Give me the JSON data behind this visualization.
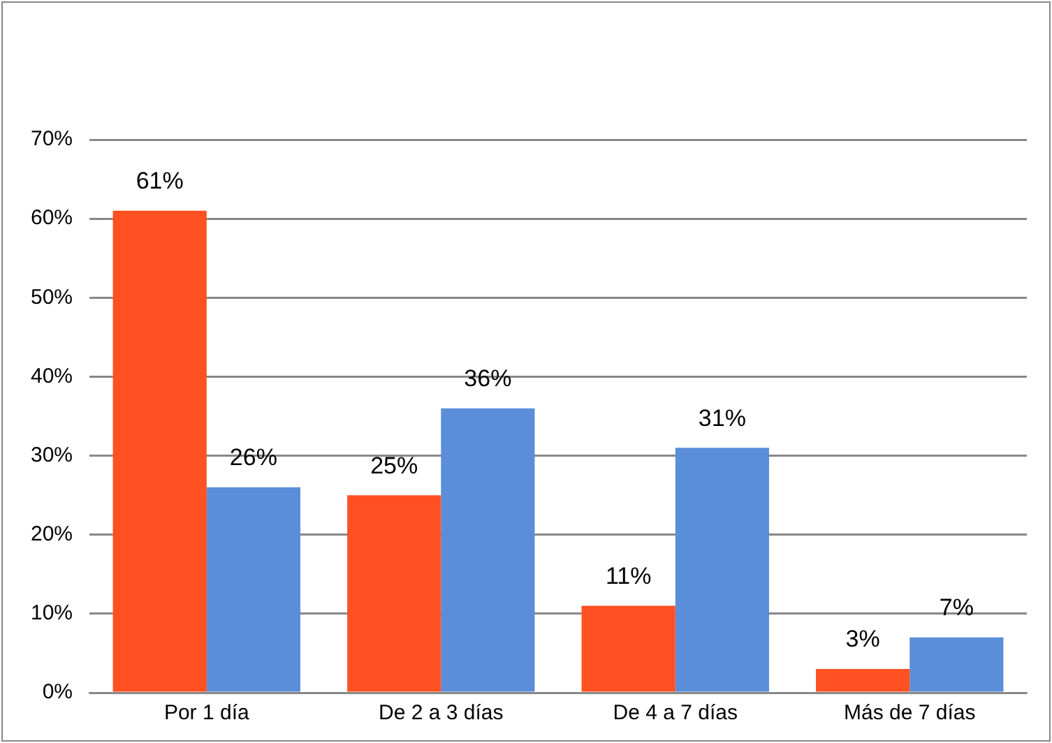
{
  "chart_data": {
    "type": "bar",
    "categories": [
      "Por 1 día",
      "De 2 a 3 días",
      "De 4 a 7 días",
      "Más de 7 días"
    ],
    "series": [
      {
        "color": "#ff5122",
        "values": [
          61,
          25,
          11,
          3
        ],
        "value_labels": [
          "61%",
          "25%",
          "11%",
          "3%"
        ]
      },
      {
        "color": "#5b8ed8",
        "values": [
          26,
          36,
          31,
          7
        ],
        "value_labels": [
          "26%",
          "36%",
          "31%",
          "7%"
        ]
      }
    ],
    "ylim": [
      0,
      70
    ],
    "yticks": [
      {
        "value": 0,
        "label": "0%"
      },
      {
        "value": 10,
        "label": "10%"
      },
      {
        "value": 20,
        "label": "20%"
      },
      {
        "value": 30,
        "label": "30%"
      },
      {
        "value": 40,
        "label": "40%"
      },
      {
        "value": 50,
        "label": "50%"
      },
      {
        "value": 60,
        "label": "60%"
      },
      {
        "value": 70,
        "label": "70%"
      }
    ],
    "grid": "y",
    "legend": false
  }
}
